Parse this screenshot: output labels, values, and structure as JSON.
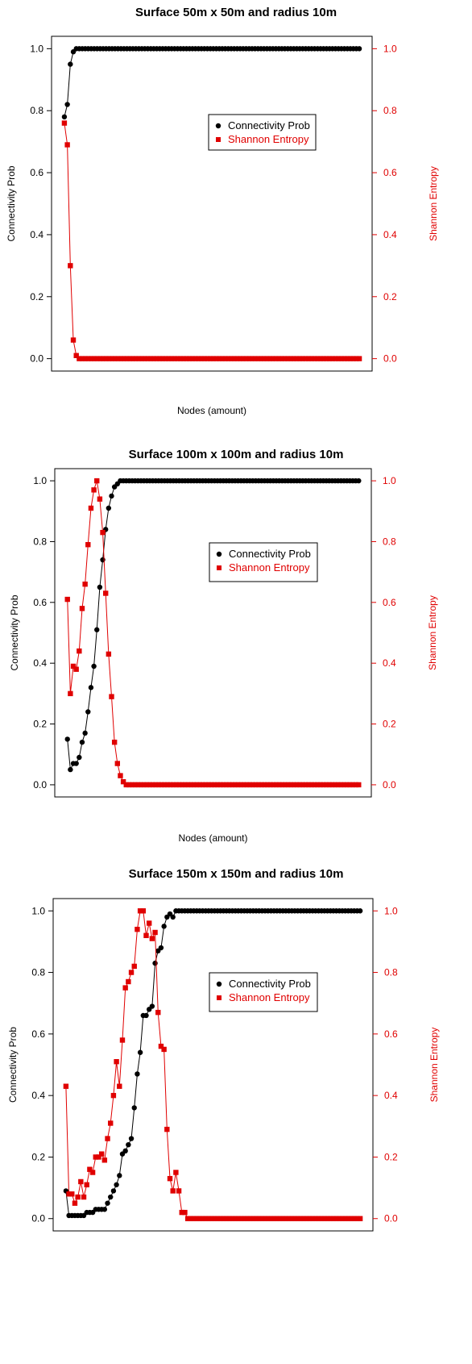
{
  "chart_data": [
    {
      "type": "line",
      "title": "Surface 50m x 50m and radius 10m",
      "xlabel": "Nodes (amount)",
      "ylabel": "Connectivity Prob",
      "ylabel_right": "Shannon Entropy",
      "ylim": [
        0,
        1
      ],
      "ylim_right": [
        0,
        1
      ],
      "yticks": [
        "0.0",
        "0.2",
        "0.4",
        "0.6",
        "0.8",
        "1.0"
      ],
      "xaxis_ticks": false,
      "legend_position": "center-right",
      "legend": [
        "Connectivity Prob",
        "Shannon Entropy"
      ],
      "series": [
        {
          "name": "Connectivity Prob",
          "axis": "left",
          "color": "#000000",
          "marker": "circle",
          "values": [
            0.78,
            0.82,
            0.95,
            0.99,
            1.0,
            1.0,
            1.0,
            1.0,
            1.0,
            1.0,
            1.0,
            1.0,
            1.0,
            1.0,
            1.0,
            1.0,
            1.0,
            1.0,
            1.0,
            1.0,
            1.0,
            1.0,
            1.0,
            1.0,
            1.0,
            1.0,
            1.0,
            1.0,
            1.0,
            1.0,
            1.0,
            1.0,
            1.0,
            1.0,
            1.0,
            1.0,
            1.0,
            1.0,
            1.0,
            1.0,
            1.0,
            1.0,
            1.0,
            1.0,
            1.0,
            1.0,
            1.0,
            1.0,
            1.0,
            1.0,
            1.0,
            1.0,
            1.0,
            1.0,
            1.0,
            1.0,
            1.0,
            1.0,
            1.0,
            1.0,
            1.0,
            1.0,
            1.0,
            1.0,
            1.0,
            1.0,
            1.0,
            1.0,
            1.0,
            1.0,
            1.0,
            1.0,
            1.0,
            1.0,
            1.0,
            1.0,
            1.0,
            1.0,
            1.0,
            1.0,
            1.0,
            1.0,
            1.0,
            1.0,
            1.0,
            1.0,
            1.0,
            1.0,
            1.0,
            1.0,
            1.0,
            1.0,
            1.0,
            1.0,
            1.0,
            1.0,
            1.0,
            1.0,
            1.0,
            1.0
          ]
        },
        {
          "name": "Shannon Entropy",
          "axis": "right",
          "color": "#e00000",
          "marker": "square",
          "values": [
            0.76,
            0.69,
            0.3,
            0.06,
            0.01,
            0.0,
            0.0,
            0.0,
            0.0,
            0.0,
            0.0,
            0.0,
            0.0,
            0.0,
            0.0,
            0.0,
            0.0,
            0.0,
            0.0,
            0.0,
            0.0,
            0.0,
            0.0,
            0.0,
            0.0,
            0.0,
            0.0,
            0.0,
            0.0,
            0.0,
            0.0,
            0.0,
            0.0,
            0.0,
            0.0,
            0.0,
            0.0,
            0.0,
            0.0,
            0.0,
            0.0,
            0.0,
            0.0,
            0.0,
            0.0,
            0.0,
            0.0,
            0.0,
            0.0,
            0.0,
            0.0,
            0.0,
            0.0,
            0.0,
            0.0,
            0.0,
            0.0,
            0.0,
            0.0,
            0.0,
            0.0,
            0.0,
            0.0,
            0.0,
            0.0,
            0.0,
            0.0,
            0.0,
            0.0,
            0.0,
            0.0,
            0.0,
            0.0,
            0.0,
            0.0,
            0.0,
            0.0,
            0.0,
            0.0,
            0.0,
            0.0,
            0.0,
            0.0,
            0.0,
            0.0,
            0.0,
            0.0,
            0.0,
            0.0,
            0.0,
            0.0,
            0.0,
            0.0,
            0.0,
            0.0,
            0.0,
            0.0,
            0.0,
            0.0,
            0.0
          ]
        }
      ]
    },
    {
      "type": "line",
      "title": "Surface 100m x 100m and radius 10m",
      "xlabel": "Nodes (amount)",
      "ylabel": "Connectivity Prob",
      "ylabel_right": "Shannon Entropy",
      "ylim": [
        0,
        1
      ],
      "ylim_right": [
        0,
        1
      ],
      "yticks": [
        "0.0",
        "0.2",
        "0.4",
        "0.6",
        "0.8",
        "1.0"
      ],
      "xaxis_ticks": false,
      "legend_position": "center-right",
      "legend": [
        "Connectivity Prob",
        "Shannon Entropy"
      ],
      "series": [
        {
          "name": "Connectivity Prob",
          "axis": "left",
          "color": "#000000",
          "marker": "circle",
          "values": [
            0.15,
            0.05,
            0.07,
            0.07,
            0.09,
            0.14,
            0.17,
            0.24,
            0.32,
            0.39,
            0.51,
            0.65,
            0.74,
            0.84,
            0.91,
            0.95,
            0.98,
            0.99,
            1.0,
            1.0,
            1.0,
            1.0,
            1.0,
            1.0,
            1.0,
            1.0,
            1.0,
            1.0,
            1.0,
            1.0,
            1.0,
            1.0,
            1.0,
            1.0,
            1.0,
            1.0,
            1.0,
            1.0,
            1.0,
            1.0,
            1.0,
            1.0,
            1.0,
            1.0,
            1.0,
            1.0,
            1.0,
            1.0,
            1.0,
            1.0,
            1.0,
            1.0,
            1.0,
            1.0,
            1.0,
            1.0,
            1.0,
            1.0,
            1.0,
            1.0,
            1.0,
            1.0,
            1.0,
            1.0,
            1.0,
            1.0,
            1.0,
            1.0,
            1.0,
            1.0,
            1.0,
            1.0,
            1.0,
            1.0,
            1.0,
            1.0,
            1.0,
            1.0,
            1.0,
            1.0,
            1.0,
            1.0,
            1.0,
            1.0,
            1.0,
            1.0,
            1.0,
            1.0,
            1.0,
            1.0,
            1.0,
            1.0,
            1.0,
            1.0,
            1.0,
            1.0,
            1.0,
            1.0,
            1.0,
            1.0
          ]
        },
        {
          "name": "Shannon Entropy",
          "axis": "right",
          "color": "#e00000",
          "marker": "square",
          "values": [
            0.61,
            0.3,
            0.39,
            0.38,
            0.44,
            0.58,
            0.66,
            0.79,
            0.91,
            0.97,
            1.0,
            0.94,
            0.83,
            0.63,
            0.43,
            0.29,
            0.14,
            0.07,
            0.03,
            0.01,
            0.0,
            0.0,
            0.0,
            0.0,
            0.0,
            0.0,
            0.0,
            0.0,
            0.0,
            0.0,
            0.0,
            0.0,
            0.0,
            0.0,
            0.0,
            0.0,
            0.0,
            0.0,
            0.0,
            0.0,
            0.0,
            0.0,
            0.0,
            0.0,
            0.0,
            0.0,
            0.0,
            0.0,
            0.0,
            0.0,
            0.0,
            0.0,
            0.0,
            0.0,
            0.0,
            0.0,
            0.0,
            0.0,
            0.0,
            0.0,
            0.0,
            0.0,
            0.0,
            0.0,
            0.0,
            0.0,
            0.0,
            0.0,
            0.0,
            0.0,
            0.0,
            0.0,
            0.0,
            0.0,
            0.0,
            0.0,
            0.0,
            0.0,
            0.0,
            0.0,
            0.0,
            0.0,
            0.0,
            0.0,
            0.0,
            0.0,
            0.0,
            0.0,
            0.0,
            0.0,
            0.0,
            0.0,
            0.0,
            0.0,
            0.0,
            0.0,
            0.0,
            0.0,
            0.0,
            0.0
          ]
        }
      ]
    },
    {
      "type": "line",
      "title": "Surface 150m x 150m and radius 10m",
      "xlabel": "Nodes (amount)",
      "ylabel": "Connectivity Prob",
      "ylabel_right": "Shannon Entropy",
      "ylim": [
        0,
        1
      ],
      "ylim_right": [
        0,
        1
      ],
      "yticks": [
        "0.0",
        "0.2",
        "0.4",
        "0.6",
        "0.8",
        "1.0"
      ],
      "xaxis_ticks": false,
      "legend_position": "center-right",
      "legend": [
        "Connectivity Prob",
        "Shannon Entropy"
      ],
      "series": [
        {
          "name": "Connectivity Prob",
          "axis": "left",
          "color": "#000000",
          "marker": "circle",
          "values": [
            0.09,
            0.01,
            0.01,
            0.01,
            0.01,
            0.01,
            0.01,
            0.02,
            0.02,
            0.02,
            0.03,
            0.03,
            0.03,
            0.03,
            0.05,
            0.07,
            0.09,
            0.11,
            0.14,
            0.21,
            0.22,
            0.24,
            0.26,
            0.36,
            0.47,
            0.54,
            0.66,
            0.66,
            0.68,
            0.69,
            0.83,
            0.87,
            0.88,
            0.95,
            0.98,
            0.99,
            0.98,
            1.0,
            1.0,
            1.0,
            1.0,
            1.0,
            1.0,
            1.0,
            1.0,
            1.0,
            1.0,
            1.0,
            1.0,
            1.0,
            1.0,
            1.0,
            1.0,
            1.0,
            1.0,
            1.0,
            1.0,
            1.0,
            1.0,
            1.0,
            1.0,
            1.0,
            1.0,
            1.0,
            1.0,
            1.0,
            1.0,
            1.0,
            1.0,
            1.0,
            1.0,
            1.0,
            1.0,
            1.0,
            1.0,
            1.0,
            1.0,
            1.0,
            1.0,
            1.0,
            1.0,
            1.0,
            1.0,
            1.0,
            1.0,
            1.0,
            1.0,
            1.0,
            1.0,
            1.0,
            1.0,
            1.0,
            1.0,
            1.0,
            1.0,
            1.0,
            1.0,
            1.0,
            1.0,
            1.0
          ]
        },
        {
          "name": "Shannon Entropy",
          "axis": "right",
          "color": "#e00000",
          "marker": "square",
          "values": [
            0.43,
            0.08,
            0.08,
            0.05,
            0.07,
            0.12,
            0.07,
            0.11,
            0.16,
            0.15,
            0.2,
            0.2,
            0.21,
            0.19,
            0.26,
            0.31,
            0.4,
            0.51,
            0.43,
            0.58,
            0.75,
            0.77,
            0.8,
            0.82,
            0.94,
            1.0,
            1.0,
            0.92,
            0.96,
            0.91,
            0.93,
            0.67,
            0.56,
            0.55,
            0.29,
            0.13,
            0.09,
            0.15,
            0.09,
            0.02,
            0.02,
            0.0,
            0.0,
            0.0,
            0.0,
            0.0,
            0.0,
            0.0,
            0.0,
            0.0,
            0.0,
            0.0,
            0.0,
            0.0,
            0.0,
            0.0,
            0.0,
            0.0,
            0.0,
            0.0,
            0.0,
            0.0,
            0.0,
            0.0,
            0.0,
            0.0,
            0.0,
            0.0,
            0.0,
            0.0,
            0.0,
            0.0,
            0.0,
            0.0,
            0.0,
            0.0,
            0.0,
            0.0,
            0.0,
            0.0,
            0.0,
            0.0,
            0.0,
            0.0,
            0.0,
            0.0,
            0.0,
            0.0,
            0.0,
            0.0,
            0.0,
            0.0,
            0.0,
            0.0,
            0.0,
            0.0,
            0.0,
            0.0,
            0.0,
            0.0
          ]
        }
      ]
    }
  ]
}
